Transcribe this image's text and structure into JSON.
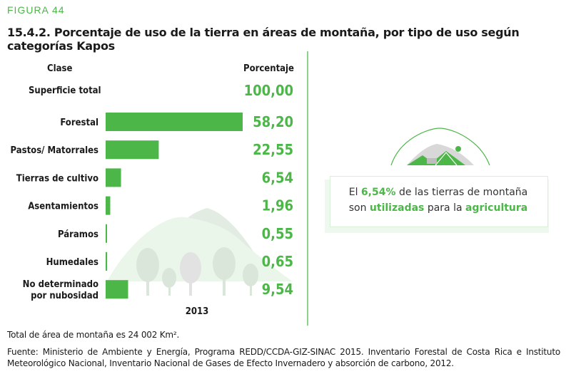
{
  "figure_label": "FIGURA 44",
  "title": "15.4.2. Porcentaje de uso de la tierra en áreas de montaña, por tipo de uso según categorías Kapos",
  "colors": {
    "accent": "#4cb748",
    "bar": "#4cb748",
    "tree": "#dde7dd",
    "hill": "#eaf6ea"
  },
  "chart_data": {
    "type": "bar",
    "orientation": "horizontal",
    "category_header": "Clase",
    "value_header": "Porcentaje",
    "total_label": "Superficie total",
    "total_value": "100,00",
    "categories": [
      "Forestal",
      "Pastos/ Matorrales",
      "Tierras de cultivo",
      "Asentamientos",
      "Páramos",
      "Humedales",
      "No determinado por nubosidad"
    ],
    "category_lines": [
      [
        "Forestal"
      ],
      [
        "Pastos/ Matorrales"
      ],
      [
        "Tierras de cultivo"
      ],
      [
        "Asentamientos"
      ],
      [
        "Páramos"
      ],
      [
        "Humedales"
      ],
      [
        "No determinado",
        "por nubosidad"
      ]
    ],
    "values": [
      58.2,
      22.55,
      6.54,
      1.96,
      0.55,
      0.65,
      9.54
    ],
    "value_labels": [
      "58,20",
      "22,55",
      "6,54",
      "1,96",
      "0,55",
      "0,65",
      "9,54"
    ],
    "xlabel": "2013",
    "xlim": [
      0,
      60
    ]
  },
  "callout": {
    "line1_pre": "El ",
    "line1_highlight": "6,54%",
    "line1_post": " de las tierras de montaña",
    "line2_pre": "son ",
    "line2_highlight1": "utilizadas",
    "line2_mid": " para la ",
    "line2_highlight2": "agricultura",
    "icon": "mountain-farm-icon"
  },
  "footnote_total": "Total de área de montaña es 24 002 Km².",
  "source": "Fuente: Ministerio de Ambiente y Energía, Programa REDD/CCDA-GIZ-SINAC 2015. Inventario Forestal de Costa Rica e Instituto Meteorológico Nacional, Inventario Nacional de Gases de Efecto Invernadero y absorción de carbono, 2012."
}
